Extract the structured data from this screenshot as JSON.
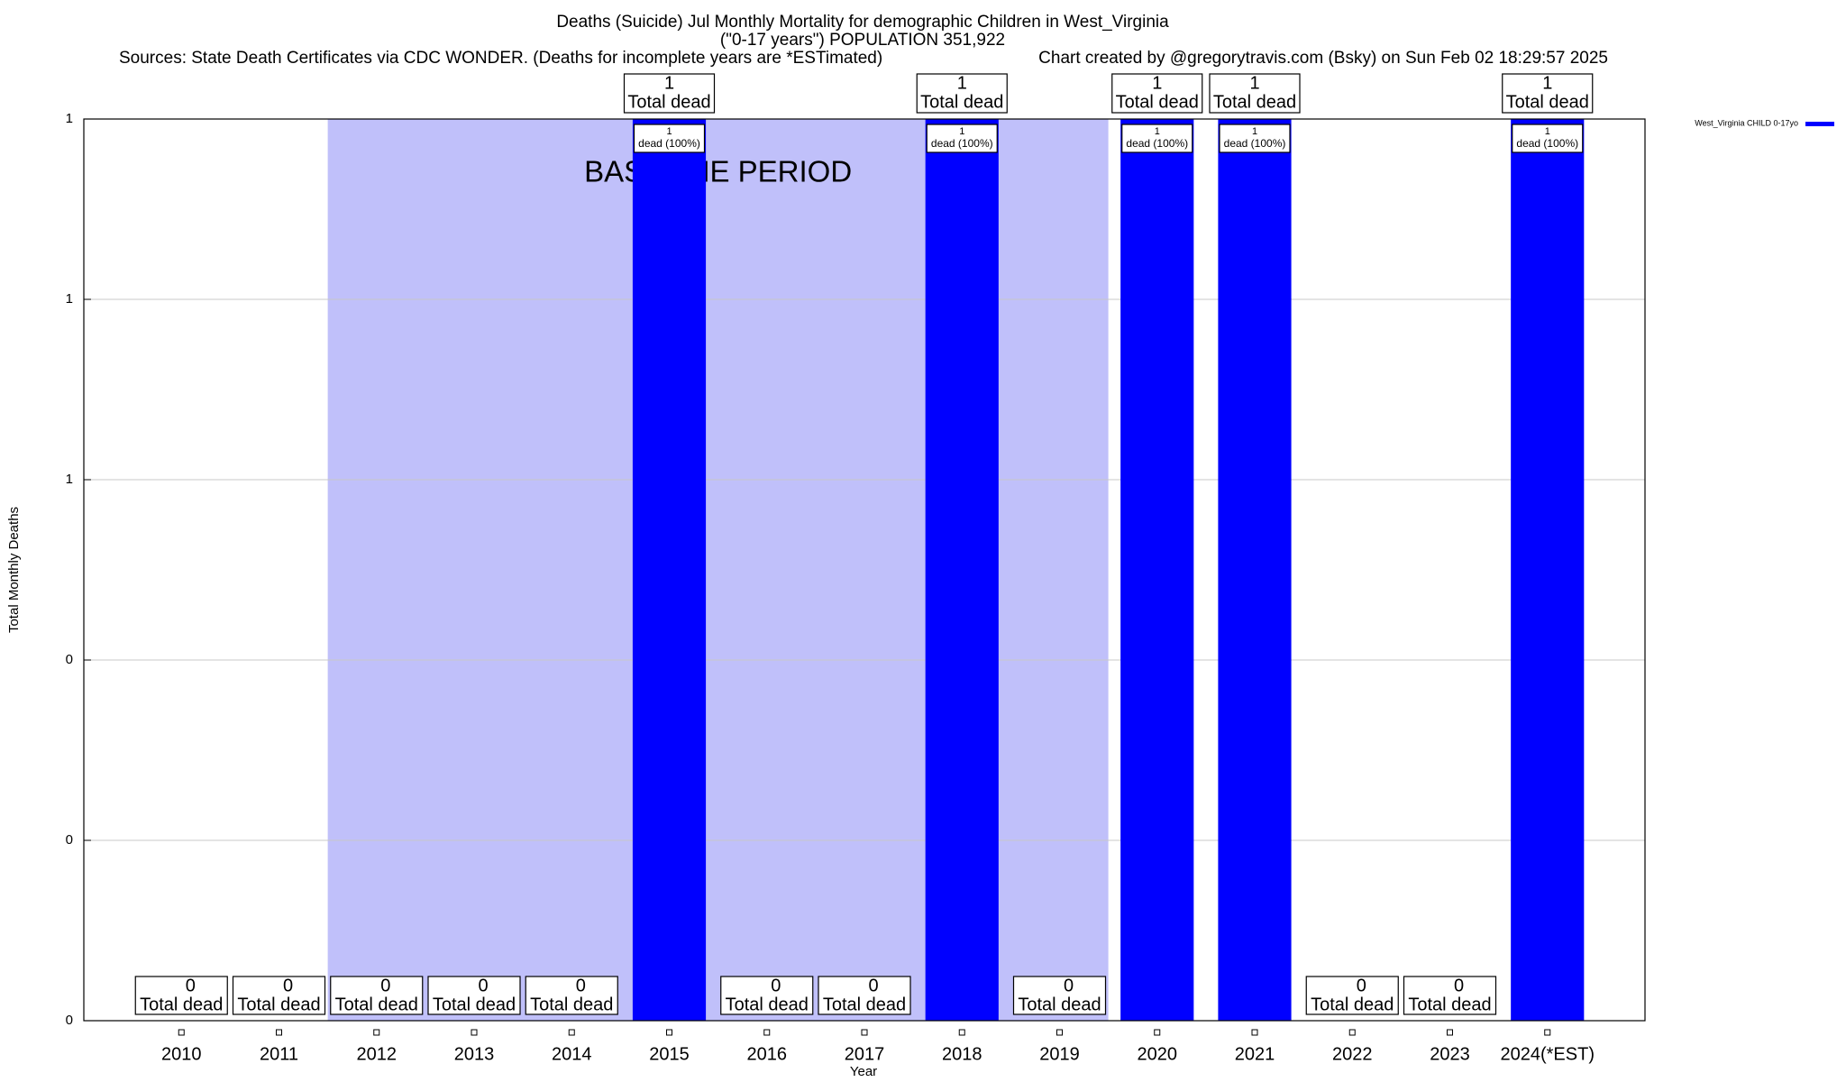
{
  "chart_data": {
    "type": "bar",
    "title": "Deaths (Suicide) Jul Monthly Mortality for demographic Children in West_Virginia",
    "subtitle": "(\"0-17 years\") POPULATION 351,922",
    "sources": "Sources: State Death Certificates via CDC WONDER. (Deaths for incomplete years are *ESTimated)",
    "credit": "Chart created by @gregorytravis.com (Bsky) on Sun Feb 02 18:29:57 2025",
    "x_label": "Year",
    "y_label": "Total Monthly Deaths",
    "categories": [
      "2010",
      "2011",
      "2012",
      "2013",
      "2014",
      "2015",
      "2016",
      "2017",
      "2018",
      "2019",
      "2020",
      "2021",
      "2022",
      "2023",
      "2024(*EST)"
    ],
    "series": [
      {
        "name": "West_Virginia CHILD 0-17yo",
        "color": "#0000ff",
        "values": [
          0,
          0,
          0,
          0,
          0,
          1,
          0,
          0,
          1,
          0,
          1,
          1,
          0,
          0,
          1
        ]
      }
    ],
    "total_label_text": "Total dead",
    "bar_label_text": "dead (100%)",
    "baseline_period": {
      "label": "BASELINE PERIOD",
      "start": "2012",
      "end": "2019",
      "color": "#c0c0fa"
    },
    "ylim": [
      0,
      1
    ],
    "yticks": [
      0,
      {
        "value": 0.2,
        "label": "0"
      },
      {
        "value": 0.4,
        "label": "0"
      },
      {
        "value": 0.6,
        "label": "1"
      },
      {
        "value": 0.8,
        "label": "1"
      },
      1
    ],
    "grid": true,
    "legend": "top-right"
  }
}
